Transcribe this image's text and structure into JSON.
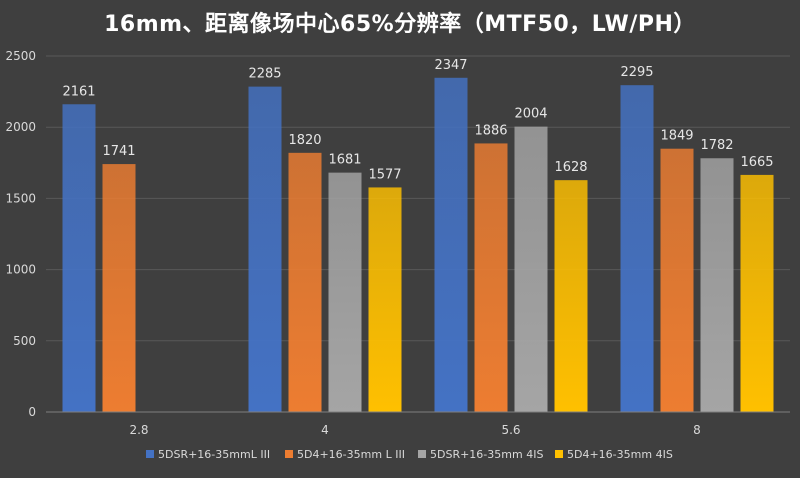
{
  "chart_data": {
    "type": "bar",
    "title": "16mm、距离像场中心65%分辨率（MTF50，LW/PH）",
    "xlabel": "",
    "ylabel": "",
    "categories": [
      "2.8",
      "4",
      "5.6",
      "8"
    ],
    "ylim": [
      0,
      2500
    ],
    "yticks": [
      0,
      500,
      1000,
      1500,
      2000,
      2500
    ],
    "grid": true,
    "legend_position": "bottom",
    "series": [
      {
        "name": "5DSR+16-35mmL III",
        "color": "#4472c4",
        "values": [
          2161,
          2285,
          2347,
          2295
        ]
      },
      {
        "name": "5D4+16-35mm L III",
        "color": "#ed7d31",
        "values": [
          1741,
          1820,
          1886,
          1849
        ]
      },
      {
        "name": "5DSR+16-35mm 4IS",
        "color": "#a5a5a5",
        "values": [
          null,
          1681,
          2004,
          1782
        ]
      },
      {
        "name": "5D4+16-35mm 4IS",
        "color": "#ffc000",
        "values": [
          null,
          1577,
          1628,
          1665
        ]
      }
    ]
  }
}
